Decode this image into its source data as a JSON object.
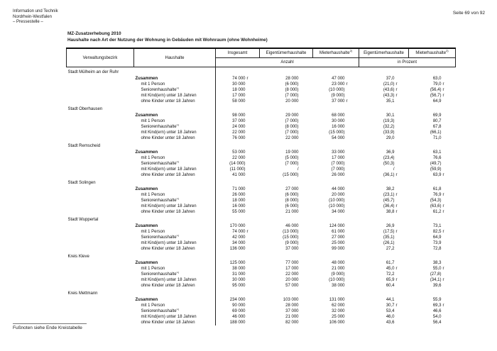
{
  "header": {
    "org_lines": [
      "Information und Technik",
      "Nordrhein-Westfalen",
      "– Pressestelle –"
    ],
    "page_number": "Seite 69 von 92"
  },
  "title": {
    "line1": "MZ-Zusatzerhebung 2010",
    "line2": "Haushalte nach Art der Nutzung der Wohnung in Gebäuden mit Wohnraum (ohne Wohnheime)"
  },
  "table": {
    "columns": {
      "verwaltungsbezirk": "Verwaltungsbezirk",
      "haushalte": "Haushalte",
      "insgesamt": "Insgesamt",
      "eigentuemer": "Eigentümerhaushalte",
      "mieter": "Mieterhaushalte",
      "mieter_sup": "2)",
      "anzahl": "Anzahl",
      "prozent": "in Prozent"
    },
    "row_labels": [
      {
        "text": "Zusammen",
        "sup": "",
        "bold": true
      },
      {
        "text": "mit 1 Person",
        "sup": "",
        "bold": false
      },
      {
        "text": "Seniorenhaushalte",
        "sup": "1)",
        "bold": false
      },
      {
        "text": "mit Kind(ern) unter 18 Jahren",
        "sup": "",
        "bold": false
      },
      {
        "text": "ohne Kinder unter 18 Jahren",
        "sup": "",
        "bold": false
      }
    ],
    "districts": [
      {
        "name": "Stadt Mülheim an der Ruhr",
        "rows": [
          [
            [
              "74 000",
              "r"
            ],
            [
              "28 000",
              ""
            ],
            [
              "47 000",
              ""
            ],
            [
              "37,0",
              ""
            ],
            [
              "63,0",
              ""
            ]
          ],
          [
            [
              "30 000",
              ""
            ],
            [
              "(6 000)",
              ""
            ],
            [
              "23 000",
              "r"
            ],
            [
              "(21,0)",
              "r"
            ],
            [
              "79,0",
              "r"
            ]
          ],
          [
            [
              "18 000",
              ""
            ],
            [
              "(8 000)",
              ""
            ],
            [
              "(10 000)",
              ""
            ],
            [
              "(43,6)",
              "r"
            ],
            [
              "(56,4)",
              "r"
            ]
          ],
          [
            [
              "17 000",
              ""
            ],
            [
              "(7 000)",
              ""
            ],
            [
              "(9 000)",
              ""
            ],
            [
              "(43,3)",
              "r"
            ],
            [
              "(56,7)",
              "r"
            ]
          ],
          [
            [
              "58 000",
              ""
            ],
            [
              "20 000",
              ""
            ],
            [
              "37 000",
              "r"
            ],
            [
              "35,1",
              ""
            ],
            [
              "64,9",
              ""
            ]
          ]
        ]
      },
      {
        "name": "Stadt Oberhausen",
        "rows": [
          [
            [
              "98 000",
              ""
            ],
            [
              "29 000",
              ""
            ],
            [
              "68 000",
              ""
            ],
            [
              "30,1",
              ""
            ],
            [
              "69,9",
              ""
            ]
          ],
          [
            [
              "37 000",
              ""
            ],
            [
              "(7 000)",
              ""
            ],
            [
              "30 000",
              ""
            ],
            [
              "(19,3)",
              ""
            ],
            [
              "80,7",
              ""
            ]
          ],
          [
            [
              "24 000",
              ""
            ],
            [
              "(8 000)",
              ""
            ],
            [
              "16 000",
              ""
            ],
            [
              "(32,2)",
              ""
            ],
            [
              "67,8",
              ""
            ]
          ],
          [
            [
              "22 000",
              ""
            ],
            [
              "(7 000)",
              ""
            ],
            [
              "(15 000)",
              ""
            ],
            [
              "(33,9)",
              ""
            ],
            [
              "(66,1)",
              ""
            ]
          ],
          [
            [
              "76 000",
              ""
            ],
            [
              "22 000",
              ""
            ],
            [
              "54 000",
              ""
            ],
            [
              "29,0",
              ""
            ],
            [
              "71,0",
              ""
            ]
          ]
        ]
      },
      {
        "name": "Stadt Remscheid",
        "rows": [
          [
            [
              "53 000",
              ""
            ],
            [
              "19 000",
              ""
            ],
            [
              "33 000",
              ""
            ],
            [
              "36,9",
              ""
            ],
            [
              "63,1",
              ""
            ]
          ],
          [
            [
              "22 000",
              ""
            ],
            [
              "(5 000)",
              ""
            ],
            [
              "17 000",
              ""
            ],
            [
              "(23,4)",
              ""
            ],
            [
              "76,6",
              ""
            ]
          ],
          [
            [
              "(14 000)",
              ""
            ],
            [
              "(7 000)",
              ""
            ],
            [
              "(7 000)",
              ""
            ],
            [
              "(50,3)",
              ""
            ],
            [
              "(49,7)",
              ""
            ]
          ],
          [
            [
              "(11 000)",
              ""
            ],
            [
              "/",
              ""
            ],
            [
              "(7 000)",
              ""
            ],
            [
              "/",
              ""
            ],
            [
              "(59,9)",
              ""
            ]
          ],
          [
            [
              "41 000",
              ""
            ],
            [
              "(15 000)",
              ""
            ],
            [
              "26 000",
              ""
            ],
            [
              "(36,1)",
              "r"
            ],
            [
              "63,9",
              "r"
            ]
          ]
        ]
      },
      {
        "name": "Stadt Solingen",
        "rows": [
          [
            [
              "71 000",
              ""
            ],
            [
              "27 000",
              ""
            ],
            [
              "44 000",
              ""
            ],
            [
              "38,2",
              ""
            ],
            [
              "61,8",
              ""
            ]
          ],
          [
            [
              "26 000",
              ""
            ],
            [
              "(6 000)",
              ""
            ],
            [
              "20 000",
              ""
            ],
            [
              "(23,1)",
              "r"
            ],
            [
              "76,9",
              "r"
            ]
          ],
          [
            [
              "18 000",
              ""
            ],
            [
              "(8 000)",
              ""
            ],
            [
              "(10 000)",
              ""
            ],
            [
              "(45,7)",
              ""
            ],
            [
              "(54,3)",
              ""
            ]
          ],
          [
            [
              "16 000",
              ""
            ],
            [
              "(6 000)",
              ""
            ],
            [
              "(10 000)",
              ""
            ],
            [
              "(36,4)",
              "r"
            ],
            [
              "(63,6)",
              "r"
            ]
          ],
          [
            [
              "55 000",
              ""
            ],
            [
              "21 000",
              ""
            ],
            [
              "34 000",
              ""
            ],
            [
              "38,8",
              "r"
            ],
            [
              "61,2",
              "r"
            ]
          ]
        ]
      },
      {
        "name": "Stadt Wuppertal",
        "rows": [
          [
            [
              "170 000",
              ""
            ],
            [
              "46 000",
              ""
            ],
            [
              "124 000",
              ""
            ],
            [
              "26,9",
              ""
            ],
            [
              "73,1",
              ""
            ]
          ],
          [
            [
              "74 000",
              "r"
            ],
            [
              "(13 000)",
              ""
            ],
            [
              "61 000",
              ""
            ],
            [
              "(17,5)",
              "r"
            ],
            [
              "82,5",
              "r"
            ]
          ],
          [
            [
              "42 000",
              ""
            ],
            [
              "(15 000)",
              ""
            ],
            [
              "27 000",
              ""
            ],
            [
              "(35,1)",
              ""
            ],
            [
              "64,9",
              ""
            ]
          ],
          [
            [
              "34 000",
              ""
            ],
            [
              "(9 000)",
              ""
            ],
            [
              "25 000",
              ""
            ],
            [
              "(26,1)",
              ""
            ],
            [
              "73,9",
              ""
            ]
          ],
          [
            [
              "136 000",
              ""
            ],
            [
              "37 000",
              ""
            ],
            [
              "99 000",
              ""
            ],
            [
              "27,2",
              ""
            ],
            [
              "72,8",
              ""
            ]
          ]
        ]
      },
      {
        "name": "Kreis Kleve",
        "rows": [
          [
            [
              "125 000",
              ""
            ],
            [
              "77 000",
              ""
            ],
            [
              "48 000",
              ""
            ],
            [
              "61,7",
              ""
            ],
            [
              "38,3",
              ""
            ]
          ],
          [
            [
              "38 000",
              ""
            ],
            [
              "17 000",
              ""
            ],
            [
              "21 000",
              ""
            ],
            [
              "45,0",
              "r"
            ],
            [
              "55,0",
              "r"
            ]
          ],
          [
            [
              "31 000",
              ""
            ],
            [
              "22 000",
              ""
            ],
            [
              "(9 000)",
              ""
            ],
            [
              "72,2",
              ""
            ],
            [
              "(27,8)",
              ""
            ]
          ],
          [
            [
              "30 000",
              ""
            ],
            [
              "20 000",
              ""
            ],
            [
              "(10 000)",
              ""
            ],
            [
              "65,9",
              "r"
            ],
            [
              "(34,1)",
              "r"
            ]
          ],
          [
            [
              "95 000",
              ""
            ],
            [
              "57 000",
              ""
            ],
            [
              "38 000",
              ""
            ],
            [
              "60,4",
              ""
            ],
            [
              "39,6",
              ""
            ]
          ]
        ]
      },
      {
        "name": "Kreis Mettmann",
        "rows": [
          [
            [
              "234 000",
              ""
            ],
            [
              "103 000",
              ""
            ],
            [
              "131 000",
              ""
            ],
            [
              "44,1",
              ""
            ],
            [
              "55,9",
              ""
            ]
          ],
          [
            [
              "90 000",
              ""
            ],
            [
              "28 000",
              ""
            ],
            [
              "62 000",
              ""
            ],
            [
              "30,7",
              "r"
            ],
            [
              "69,3",
              "r"
            ]
          ],
          [
            [
              "69 000",
              ""
            ],
            [
              "37 000",
              ""
            ],
            [
              "32 000",
              ""
            ],
            [
              "53,4",
              ""
            ],
            [
              "46,6",
              ""
            ]
          ],
          [
            [
              "46 000",
              ""
            ],
            [
              "21 000",
              ""
            ],
            [
              "25 000",
              ""
            ],
            [
              "46,0",
              ""
            ],
            [
              "54,0",
              ""
            ]
          ],
          [
            [
              "188 000",
              ""
            ],
            [
              "82 000",
              ""
            ],
            [
              "106 000",
              ""
            ],
            [
              "43,6",
              ""
            ],
            [
              "56,4",
              ""
            ]
          ]
        ]
      }
    ]
  },
  "footer": {
    "footnote": "Fußnoten siehe Ende Kreistabelle"
  }
}
